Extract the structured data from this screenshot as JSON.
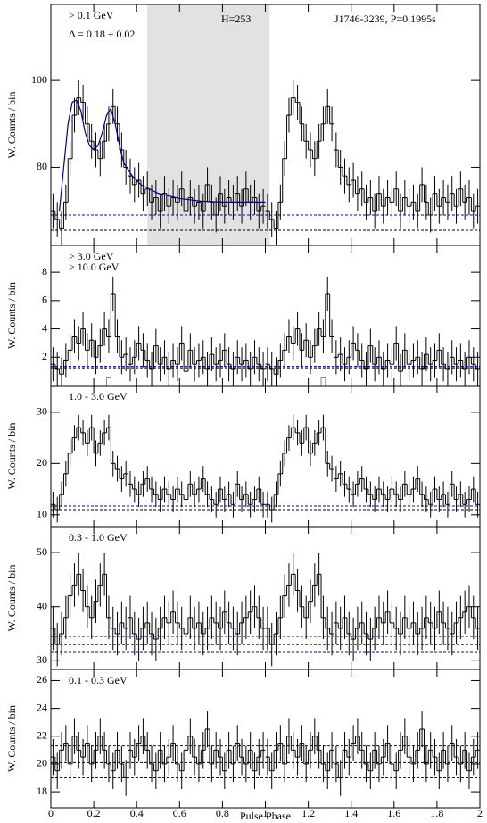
{
  "chart_data": [
    {
      "type": "step",
      "ylabel": "W. Counts / bin",
      "label": "> 0.1 GeV",
      "color": "#000000",
      "ylim": [
        62,
        117.5
      ],
      "yticks": [
        80,
        100
      ],
      "annotations": [
        {
          "text": "Δ = 0.18 ± 0.02",
          "color": "#ff0000"
        },
        {
          "text": "H=253",
          "color": "#000000"
        },
        {
          "text": "J1746-3239, P=0.1995s",
          "color": "#0000cc"
        }
      ],
      "off_pulse": [
        0.45,
        1.02
      ],
      "values": [
        70,
        68,
        66,
        72,
        82,
        92,
        96,
        95,
        90,
        86,
        84,
        82,
        86,
        90,
        94,
        90,
        84,
        80,
        78,
        76,
        77,
        74,
        75,
        72,
        73,
        70,
        74,
        71,
        73,
        72,
        75,
        70,
        73,
        71,
        72,
        70,
        76,
        72,
        69,
        74,
        71,
        73,
        72,
        74,
        71,
        75,
        72,
        73,
        70,
        71
      ],
      "error": 4,
      "fit": {
        "color": "#00008b",
        "x": [
          0.04,
          0.06,
          0.08,
          0.1,
          0.12,
          0.14,
          0.16,
          0.18,
          0.2,
          0.22,
          0.24,
          0.26,
          0.28,
          0.3,
          0.32,
          0.34,
          0.38,
          0.42,
          0.5,
          0.6,
          0.7,
          0.8,
          0.9,
          1.0
        ],
        "y": [
          70,
          80,
          90,
          95,
          95.5,
          93,
          88,
          85,
          84,
          85,
          88,
          92,
          93.5,
          90,
          85,
          81,
          78,
          76,
          74,
          72.8,
          72.2,
          72,
          72,
          72
        ]
      },
      "hlines": [
        {
          "value": 69,
          "color": "#0000cc"
        },
        {
          "value": 65.5,
          "color": "#000000"
        }
      ]
    },
    {
      "type": "step",
      "ylabel": "W. Counts / bin",
      "label": "> 3.0 GeV",
      "color": "#000000",
      "ylim": [
        0,
        9.9
      ],
      "yticks": [
        2,
        4,
        6,
        8
      ],
      "sub_label": "> 10.0 GeV",
      "sub_color": "#888888",
      "sub_values": [
        0,
        0,
        0,
        0,
        0,
        0,
        0,
        0,
        0,
        0,
        0,
        0,
        0,
        0.6,
        0,
        0,
        0,
        0,
        0,
        0,
        0,
        0,
        0,
        0,
        0,
        0,
        0,
        0,
        0,
        0,
        0,
        0,
        0,
        0,
        0,
        0,
        0,
        0,
        0,
        0,
        0,
        0,
        0,
        0,
        0,
        0,
        0,
        0,
        0,
        0
      ],
      "values": [
        1.5,
        1.2,
        0.8,
        1.8,
        2.5,
        3.5,
        3,
        4,
        2.5,
        3.2,
        2,
        2.8,
        4,
        3.5,
        6.5,
        3.5,
        2,
        2.2,
        1.5,
        2,
        3,
        2.5,
        1.8,
        1.2,
        2.8,
        1.5,
        2,
        1.2,
        1.8,
        1.5,
        3,
        1,
        2.5,
        1.5,
        1.8,
        2,
        1.2,
        2.2,
        1.5,
        1.8,
        2.5,
        1.5,
        1.2,
        2,
        1.5,
        1.8,
        1.2,
        2,
        1.5,
        1.2
      ],
      "error": 1.2,
      "hlines": [
        {
          "value": 1.35,
          "color": "#0000cc"
        },
        {
          "value": 1.25,
          "color": "#000000"
        }
      ]
    },
    {
      "type": "step",
      "ylabel": "W. Counts / bin",
      "label": "1.0 - 3.0 GeV",
      "color": "#000000",
      "ylim": [
        7.7,
        35.2
      ],
      "yticks": [
        10,
        20,
        30
      ],
      "values": [
        12,
        11,
        14,
        18,
        22,
        25,
        27,
        26,
        24,
        27,
        22,
        24,
        26,
        27,
        20,
        19,
        17,
        18,
        16,
        15,
        14,
        16,
        17,
        15,
        14,
        13,
        15,
        14,
        13,
        15,
        14,
        13,
        16,
        14,
        15,
        17,
        14,
        13,
        12,
        15,
        13,
        14,
        12,
        16,
        13,
        14,
        12,
        13,
        15,
        12
      ],
      "error": 2.5,
      "hlines": [
        {
          "value": 11.7,
          "color": "#0000cc"
        },
        {
          "value": 11,
          "color": "#000000"
        }
      ]
    },
    {
      "type": "step",
      "ylabel": "W. Counts / bin",
      "label": "0.3 - 1.0 GeV",
      "color": "#000000",
      "ylim": [
        28.4,
        54.8
      ],
      "yticks": [
        30,
        40,
        50
      ],
      "values": [
        36,
        33,
        35,
        38,
        42,
        44,
        46,
        43,
        40,
        38,
        41,
        44,
        46,
        38,
        36,
        35,
        37,
        36,
        38,
        35,
        34,
        36,
        37,
        35,
        34,
        36,
        38,
        37,
        39,
        37,
        36,
        35,
        38,
        36,
        37,
        35,
        36,
        38,
        37,
        36,
        39,
        37,
        36,
        35,
        37,
        38,
        39,
        40,
        38,
        36
      ],
      "error": 4,
      "hlines": [
        {
          "value": 34.5,
          "color": "#0000cc"
        },
        {
          "value": 33,
          "color": "#000000"
        },
        {
          "value": 31.7,
          "color": "#0000cc"
        }
      ]
    },
    {
      "type": "step",
      "ylabel": "W. Counts / bin",
      "label": "0.1 - 0.3 GeV",
      "color": "#000000",
      "ylim": [
        16.85,
        26.8
      ],
      "yticks": [
        18,
        20,
        22,
        24,
        26
      ],
      "values": [
        20.5,
        19.5,
        21,
        21.5,
        20,
        22,
        21,
        20.5,
        21.5,
        20,
        21,
        22,
        21,
        20,
        19.5,
        21,
        20,
        19,
        21,
        20.5,
        21.5,
        22,
        21,
        20,
        19.5,
        21,
        20,
        20.5,
        21.5,
        20,
        19.5,
        21,
        22,
        20.5,
        20,
        21,
        22.5,
        20,
        21,
        20.5,
        19.5,
        21,
        20,
        21.5,
        20.5,
        20,
        21,
        19.5,
        20.5,
        21
      ],
      "error": 1.3,
      "hlines": [
        {
          "value": 21.3,
          "color": "#0000cc"
        },
        {
          "value": 20.1,
          "color": "#000000"
        },
        {
          "value": 19,
          "color": "#0000cc"
        }
      ],
      "xlabel": "Pulse Phase",
      "xlim": [
        0,
        2
      ],
      "xticks": [
        0,
        0.2,
        0.4,
        0.6,
        0.8,
        1,
        1.2,
        1.4,
        1.6,
        1.8,
        2
      ]
    }
  ]
}
